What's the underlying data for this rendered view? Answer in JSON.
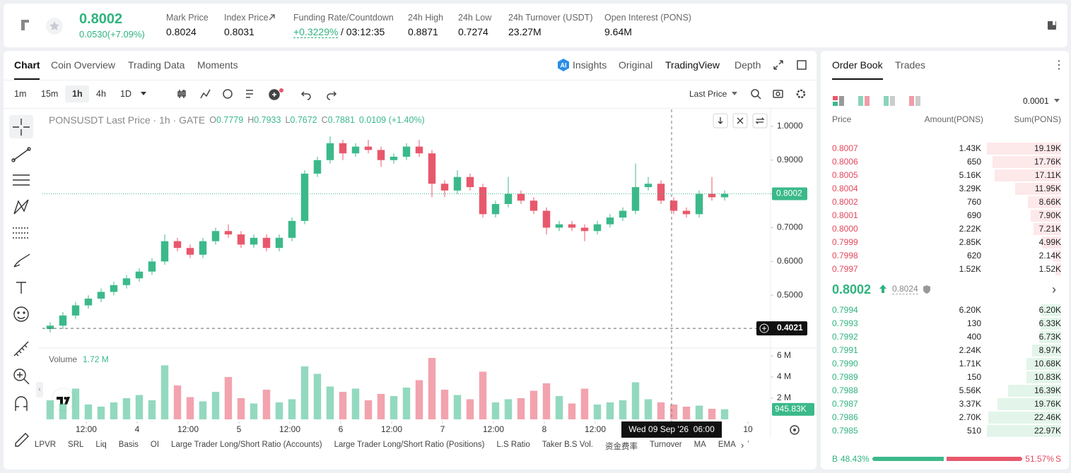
{
  "header": {
    "price": "0.8002",
    "change": "0.0530(+7.09%)",
    "stats": [
      {
        "label": "Mark Price",
        "value": "0.8024"
      },
      {
        "label": "Index Price",
        "value": "0.8031"
      },
      {
        "label": "Funding Rate/Countdown",
        "value": "+0.3229%",
        "extra": "/ 03:12:35"
      },
      {
        "label": "24h High",
        "value": "0.8871"
      },
      {
        "label": "24h Low",
        "value": "0.7274"
      },
      {
        "label": "24h Turnover (USDT)",
        "value": "23.27M"
      },
      {
        "label": "Open Interest (PONS)",
        "value": "9.64M"
      }
    ]
  },
  "tabs": [
    "Chart",
    "Coin Overview",
    "Trading Data",
    "Moments"
  ],
  "views": [
    "Insights",
    "Original",
    "TradingView",
    "Depth"
  ],
  "timeframes": [
    "1m",
    "15m",
    "1h",
    "4h",
    "1D"
  ],
  "price_type": "Last Price",
  "legend": {
    "title": "PONSUSDT Last Price · 1h · GATE",
    "o_label": "O",
    "o": "0.7779",
    "h_label": "H",
    "h": "0.7933",
    "l_label": "L",
    "l": "0.7672",
    "c_label": "C",
    "c": "0.7881",
    "chg": "0.0109 (+1.40%)"
  },
  "volume": {
    "label": "Volume",
    "value": "1.72 M"
  },
  "indicators": [
    "LPVR",
    "SRL",
    "Liq",
    "Basis",
    "OI",
    "Large Trader Long/Short Ratio (Accounts)",
    "Large Trader Long/Short Ratio (Positions)",
    "L.S Ratio",
    "Taker B.S Vol.",
    "资金费率",
    "Turnover",
    "MA",
    "EMA",
    "Volu"
  ],
  "chart_data": {
    "type": "candlestick",
    "up_color": "#3bb98a",
    "down_color": "#e8586c",
    "x": [
      1.5,
      4.5,
      7.5,
      10.5,
      13.5,
      16.5,
      19.5,
      22.5,
      25.5,
      28.5,
      31.5,
      34.5,
      37.5,
      40.5,
      43.5,
      46.5,
      49.5,
      52.5,
      55.5,
      58.5,
      61.5,
      64.5,
      67.5,
      70.5,
      73.5,
      76.5,
      79.5,
      82.5,
      85.5,
      88.5,
      91.5,
      94.5,
      97.5,
      100.5,
      103.5,
      106.5,
      109.5,
      112.5,
      115.5,
      118.5,
      121.5,
      124.5,
      127.5,
      130.5,
      133.5,
      136.5,
      139.5,
      142.5,
      145.5,
      148.5,
      151.5,
      154.5,
      157.5,
      160.5
    ],
    "candles": [
      [
        0.4,
        0.42,
        0.39,
        0.41
      ],
      [
        0.41,
        0.45,
        0.4,
        0.44
      ],
      [
        0.44,
        0.48,
        0.43,
        0.47
      ],
      [
        0.47,
        0.5,
        0.46,
        0.49
      ],
      [
        0.49,
        0.52,
        0.48,
        0.51
      ],
      [
        0.51,
        0.54,
        0.5,
        0.53
      ],
      [
        0.53,
        0.56,
        0.52,
        0.55
      ],
      [
        0.55,
        0.58,
        0.54,
        0.57
      ],
      [
        0.57,
        0.61,
        0.56,
        0.6
      ],
      [
        0.6,
        0.68,
        0.59,
        0.66
      ],
      [
        0.66,
        0.67,
        0.63,
        0.64
      ],
      [
        0.64,
        0.65,
        0.61,
        0.62
      ],
      [
        0.62,
        0.67,
        0.61,
        0.66
      ],
      [
        0.66,
        0.7,
        0.65,
        0.69
      ],
      [
        0.69,
        0.71,
        0.67,
        0.68
      ],
      [
        0.68,
        0.69,
        0.64,
        0.65
      ],
      [
        0.65,
        0.68,
        0.64,
        0.67
      ],
      [
        0.67,
        0.68,
        0.63,
        0.64
      ],
      [
        0.64,
        0.68,
        0.63,
        0.67
      ],
      [
        0.67,
        0.73,
        0.66,
        0.72
      ],
      [
        0.72,
        0.87,
        0.71,
        0.86
      ],
      [
        0.86,
        0.91,
        0.85,
        0.9
      ],
      [
        0.9,
        0.97,
        0.89,
        0.95
      ],
      [
        0.95,
        0.96,
        0.9,
        0.92
      ],
      [
        0.92,
        0.95,
        0.91,
        0.94
      ],
      [
        0.94,
        0.96,
        0.92,
        0.93
      ],
      [
        0.93,
        0.94,
        0.88,
        0.9
      ],
      [
        0.9,
        0.92,
        0.89,
        0.91
      ],
      [
        0.91,
        0.95,
        0.9,
        0.94
      ],
      [
        0.94,
        0.96,
        0.91,
        0.92
      ],
      [
        0.92,
        0.93,
        0.79,
        0.83
      ],
      [
        0.83,
        0.84,
        0.79,
        0.81
      ],
      [
        0.81,
        0.87,
        0.8,
        0.85
      ],
      [
        0.85,
        0.86,
        0.81,
        0.82
      ],
      [
        0.82,
        0.83,
        0.73,
        0.74
      ],
      [
        0.74,
        0.78,
        0.73,
        0.77
      ],
      [
        0.77,
        0.85,
        0.76,
        0.8
      ],
      [
        0.8,
        0.81,
        0.77,
        0.78
      ],
      [
        0.78,
        0.79,
        0.74,
        0.75
      ],
      [
        0.75,
        0.76,
        0.68,
        0.7
      ],
      [
        0.7,
        0.72,
        0.69,
        0.71
      ],
      [
        0.71,
        0.72,
        0.69,
        0.7
      ],
      [
        0.7,
        0.71,
        0.66,
        0.69
      ],
      [
        0.69,
        0.72,
        0.68,
        0.71
      ],
      [
        0.71,
        0.74,
        0.7,
        0.73
      ],
      [
        0.73,
        0.76,
        0.72,
        0.75
      ],
      [
        0.75,
        0.89,
        0.74,
        0.82
      ],
      [
        0.82,
        0.85,
        0.81,
        0.83
      ],
      [
        0.83,
        0.84,
        0.77,
        0.78
      ],
      [
        0.78,
        0.79,
        0.74,
        0.75
      ],
      [
        0.75,
        0.76,
        0.73,
        0.74
      ],
      [
        0.74,
        0.81,
        0.73,
        0.8
      ],
      [
        0.8,
        0.85,
        0.78,
        0.79
      ],
      [
        0.79,
        0.81,
        0.78,
        0.8
      ]
    ],
    "volumes": [
      1.8,
      1.5,
      2.9,
      1.4,
      1.2,
      1.6,
      2.0,
      2.3,
      1.8,
      5.1,
      3.2,
      2.1,
      1.7,
      2.6,
      4.0,
      2.0,
      1.5,
      2.8,
      1.6,
      1.9,
      5.0,
      4.3,
      3.1,
      2.6,
      2.9,
      1.8,
      2.4,
      2.2,
      3.0,
      3.7,
      5.8,
      2.8,
      2.3,
      1.9,
      4.5,
      1.6,
      1.9,
      2.0,
      2.7,
      3.4,
      2.2,
      1.5,
      2.9,
      1.4,
      1.6,
      1.8,
      3.5,
      1.9,
      1.6,
      1.4,
      1.2,
      1.3,
      1.0,
      0.95
    ],
    "xlim": [
      -0.33,
      171.33
    ],
    "xticks": [
      {
        "value": 10,
        "label": "12:00"
      },
      {
        "value": 22,
        "label": "4"
      },
      {
        "value": 34,
        "label": "12:00"
      },
      {
        "value": 46,
        "label": "5"
      },
      {
        "value": 58,
        "label": "12:00"
      },
      {
        "value": 70,
        "label": "6"
      },
      {
        "value": 82,
        "label": "12:00"
      },
      {
        "value": 94,
        "label": "7"
      },
      {
        "value": 106,
        "label": "12:00"
      },
      {
        "value": 118,
        "label": "8"
      },
      {
        "value": 130,
        "label": "12:00"
      },
      {
        "value": 166,
        "label": "10"
      }
    ],
    "ylim": [
      0.35,
      1.05
    ],
    "yticks": [
      {
        "value": 1,
        "label": "1.0000"
      },
      {
        "value": 0.9,
        "label": "0.9000"
      },
      {
        "value": 0.8,
        "label": "0.8000"
      },
      {
        "value": 0.7,
        "label": "0.7000"
      },
      {
        "value": 0.6,
        "label": "0.6000"
      },
      {
        "value": 0.5,
        "label": "0.5000"
      }
    ],
    "y2lim": [
      0,
      6.6
    ],
    "y2ticks": [
      {
        "value": 6,
        "label": "6 M"
      },
      {
        "value": 4,
        "label": "4 M"
      },
      {
        "value": 2,
        "label": "2 M"
      }
    ],
    "last_price": 0.8002,
    "cursor_price": 0.4021,
    "last_volume": {
      "value": 0.94583,
      "label": "945.83K"
    },
    "crosshair": {
      "value": 148,
      "label": "Wed 09 Sep '26  06:00"
    }
  },
  "orderbook": {
    "tabs": [
      "Order Book",
      "Trades"
    ],
    "precision": "0.0001",
    "columns": [
      "Price",
      "Amount(PONS)",
      "Sum(PONS)"
    ],
    "asks": [
      {
        "price": "0.8007",
        "amount": "1.43K",
        "sum": "19.19K",
        "depth": 19.19
      },
      {
        "price": "0.8006",
        "amount": "650",
        "sum": "17.76K",
        "depth": 17.76
      },
      {
        "price": "0.8005",
        "amount": "5.16K",
        "sum": "17.11K",
        "depth": 17.11
      },
      {
        "price": "0.8004",
        "amount": "3.29K",
        "sum": "11.95K",
        "depth": 11.95
      },
      {
        "price": "0.8002",
        "amount": "760",
        "sum": "8.66K",
        "depth": 8.66
      },
      {
        "price": "0.8001",
        "amount": "690",
        "sum": "7.90K",
        "depth": 7.9
      },
      {
        "price": "0.8000",
        "amount": "2.22K",
        "sum": "7.21K",
        "depth": 7.21
      },
      {
        "price": "0.7999",
        "amount": "2.85K",
        "sum": "4.99K",
        "depth": 4.99
      },
      {
        "price": "0.7998",
        "amount": "620",
        "sum": "2.14K",
        "depth": 2.14
      },
      {
        "price": "0.7997",
        "amount": "1.52K",
        "sum": "1.52K",
        "depth": 1.52
      }
    ],
    "mid": {
      "price": "0.8002",
      "mark": "0.8024"
    },
    "bids": [
      {
        "price": "0.7994",
        "amount": "6.20K",
        "sum": "6.20K",
        "depth": 6.2
      },
      {
        "price": "0.7993",
        "amount": "130",
        "sum": "6.33K",
        "depth": 6.33
      },
      {
        "price": "0.7992",
        "amount": "400",
        "sum": "6.73K",
        "depth": 6.73
      },
      {
        "price": "0.7991",
        "amount": "2.24K",
        "sum": "8.97K",
        "depth": 8.97
      },
      {
        "price": "0.7990",
        "amount": "1.71K",
        "sum": "10.68K",
        "depth": 10.68
      },
      {
        "price": "0.7989",
        "amount": "150",
        "sum": "10.83K",
        "depth": 10.83
      },
      {
        "price": "0.7988",
        "amount": "5.56K",
        "sum": "16.39K",
        "depth": 16.39
      },
      {
        "price": "0.7987",
        "amount": "3.37K",
        "sum": "19.76K",
        "depth": 19.76
      },
      {
        "price": "0.7986",
        "amount": "2.70K",
        "sum": "22.46K",
        "depth": 22.46
      },
      {
        "price": "0.7985",
        "amount": "510",
        "sum": "22.97K",
        "depth": 22.97
      }
    ],
    "ratio": {
      "buy_letter": "B",
      "buy": {
        "value": 48.43,
        "label": "48.43%"
      },
      "sell_letter": "S",
      "sell": {
        "value": 51.57,
        "label": "51.57%"
      }
    }
  }
}
